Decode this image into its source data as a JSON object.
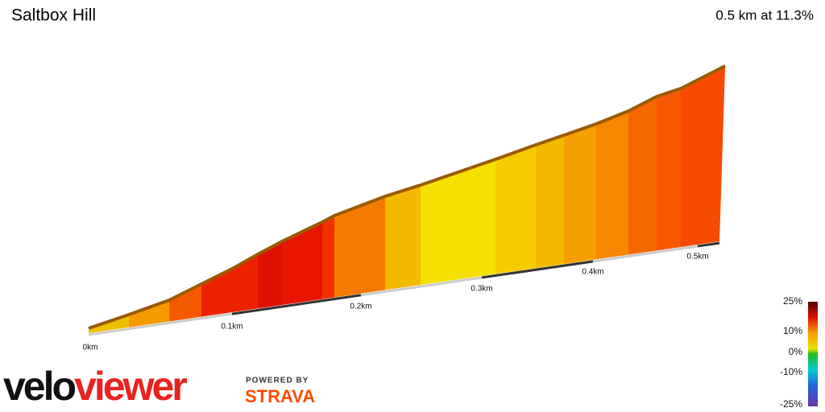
{
  "header": {
    "title": "Saltbox Hill",
    "summary": "0.5 km at 11.3%"
  },
  "distance_labels": [
    "0km",
    "0.1km",
    "0.2km",
    "0.3km",
    "0.4km",
    "0.5km"
  ],
  "legend": {
    "labels": [
      "25%",
      "10%",
      "0%",
      "-10%",
      "-25%"
    ]
  },
  "logo": {
    "velo": "velo",
    "viewer": "viewer",
    "powered_by": "POWERED BY",
    "strava": "STRAVA"
  }
}
